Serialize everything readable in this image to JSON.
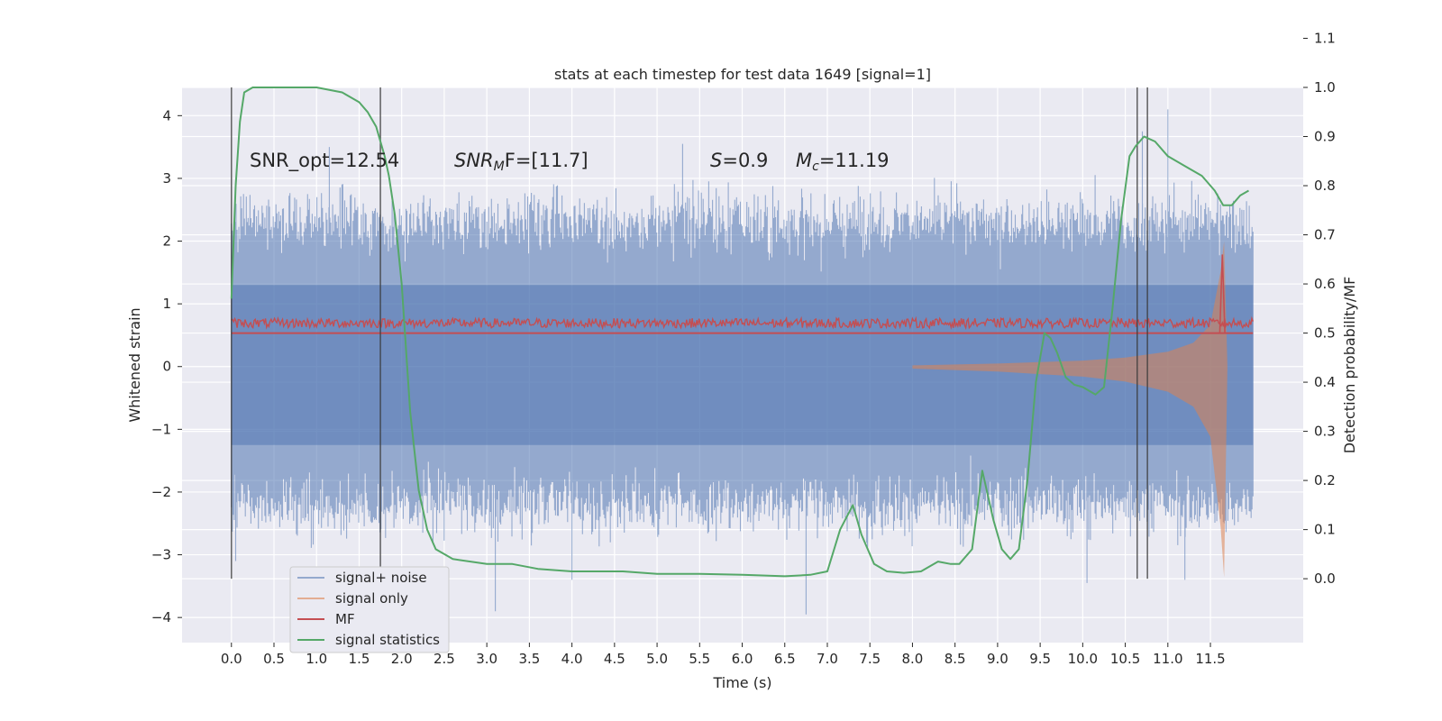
{
  "chart_data": {
    "type": "line",
    "title": "stats at each timestep for test data 1649 [signal=1]",
    "xlabel": "Time (s)",
    "ylabel_left": "Whitened strain",
    "ylabel_right": "Detection probability/MF",
    "xlim": [
      -0.58,
      12.59
    ],
    "ylim_left": [
      -4.4,
      4.45
    ],
    "ylim_right": [
      -0.13,
      1.0
    ],
    "x_ticks": [
      0.0,
      0.5,
      1.0,
      1.5,
      2.0,
      2.5,
      3.0,
      3.5,
      4.0,
      4.5,
      5.0,
      5.5,
      6.0,
      6.5,
      7.0,
      7.5,
      8.0,
      8.5,
      9.0,
      9.5,
      10.0,
      10.5,
      11.0,
      11.5
    ],
    "x_tick_labels": [
      "0.0",
      "0.5",
      "1.0",
      "1.5",
      "2.0",
      "2.5",
      "3.0",
      "3.5",
      "4.0",
      "4.5",
      "5.0",
      "5.5",
      "6.0",
      "6.5",
      "7.0",
      "7.5",
      "8.0",
      "8.5",
      "9.0",
      "9.5",
      "10.0",
      "10.5",
      "11.0",
      "11.5"
    ],
    "y_left_ticks": [
      -4,
      -3,
      -2,
      -1,
      0,
      1,
      2,
      3,
      4
    ],
    "y_left_tick_labels": [
      "−4",
      "−3",
      "−2",
      "−1",
      "0",
      "1",
      "2",
      "3",
      "4"
    ],
    "y_right_ticks": [
      0.0,
      0.1,
      0.2,
      0.3,
      0.4,
      0.5,
      0.6,
      0.7,
      0.8,
      0.9,
      1.0,
      1.1
    ],
    "y_right_tick_labels": [
      "0.0",
      "0.1",
      "0.2",
      "0.3",
      "0.4",
      "0.5",
      "0.6",
      "0.7",
      "0.8",
      "0.9",
      "1.0",
      "1.1"
    ],
    "grid": true,
    "legend_position": "lower-left",
    "annotations": {
      "snr_opt": "SNR_opt=12.54",
      "snr_mf_label": "SNR",
      "snr_mf_sub": "M",
      "snr_mf_rest": "F=[11.7]",
      "s_label": "S",
      "s_value": "=0.9",
      "mc_label": "M",
      "mc_sub": "c",
      "mc_value": "=11.19"
    },
    "vertical_lines_x": [
      0.0,
      1.75,
      10.64,
      10.76
    ],
    "series": [
      {
        "name": "signal+ noise",
        "color": "#4c72b0",
        "axis": "left",
        "x_range": [
          0.0,
          12.0
        ],
        "envelope_approx": [
          -2.2,
          2.3
        ],
        "extreme_peaks": [
          [
            0.05,
            -3.1
          ],
          [
            1.15,
            3.5
          ],
          [
            3.1,
            -3.9
          ],
          [
            4.0,
            -3.4
          ],
          [
            5.3,
            3.55
          ],
          [
            6.75,
            -3.95
          ],
          [
            10.05,
            -3.45
          ],
          [
            10.7,
            3.75
          ],
          [
            11.0,
            4.1
          ],
          [
            11.2,
            -3.4
          ]
        ]
      },
      {
        "name": "signal only",
        "color": "#dd8452",
        "axis": "left",
        "envelope_x": [
          8.0,
          9.0,
          10.0,
          10.5,
          11.0,
          11.3,
          11.5,
          11.62,
          11.66,
          11.7
        ],
        "envelope_amp": [
          0.02,
          0.05,
          0.1,
          0.15,
          0.25,
          0.4,
          0.7,
          1.6,
          2.1,
          0.0
        ]
      },
      {
        "name": "MF",
        "color": "#c44e52",
        "axis": "right",
        "x_range": [
          0.0,
          12.0
        ],
        "baseline": 0.5,
        "band": [
          0.5,
          0.53
        ],
        "spike": [
          11.64,
          0.66
        ]
      },
      {
        "name": "signal statistics",
        "color": "#55a868",
        "axis": "right",
        "x": [
          0.0,
          0.05,
          0.1,
          0.15,
          0.25,
          0.35,
          0.5,
          0.7,
          1.0,
          1.3,
          1.5,
          1.6,
          1.7,
          1.8,
          1.85,
          1.92,
          2.0,
          2.05,
          2.1,
          2.2,
          2.3,
          2.4,
          2.6,
          3.0,
          3.3,
          3.6,
          4.0,
          4.3,
          4.6,
          5.0,
          5.5,
          6.0,
          6.5,
          6.8,
          7.0,
          7.15,
          7.3,
          7.4,
          7.55,
          7.7,
          7.9,
          8.1,
          8.3,
          8.45,
          8.55,
          8.7,
          8.82,
          8.95,
          9.05,
          9.15,
          9.25,
          9.35,
          9.45,
          9.55,
          9.62,
          9.7,
          9.8,
          9.9,
          10.0,
          10.1,
          10.15,
          10.25,
          10.35,
          10.45,
          10.55,
          10.62,
          10.72,
          10.85,
          11.0,
          11.2,
          11.4,
          11.55,
          11.65,
          11.75,
          11.85,
          11.95
        ],
        "y": [
          0.57,
          0.8,
          0.93,
          0.99,
          1.0,
          1.0,
          1.0,
          1.0,
          1.0,
          0.99,
          0.97,
          0.95,
          0.92,
          0.86,
          0.82,
          0.74,
          0.6,
          0.47,
          0.34,
          0.18,
          0.1,
          0.06,
          0.04,
          0.03,
          0.03,
          0.02,
          0.015,
          0.015,
          0.015,
          0.01,
          0.01,
          0.008,
          0.005,
          0.008,
          0.015,
          0.1,
          0.15,
          0.09,
          0.03,
          0.015,
          0.012,
          0.015,
          0.035,
          0.03,
          0.03,
          0.06,
          0.22,
          0.12,
          0.06,
          0.04,
          0.06,
          0.2,
          0.4,
          0.5,
          0.49,
          0.46,
          0.41,
          0.395,
          0.39,
          0.38,
          0.375,
          0.39,
          0.55,
          0.73,
          0.86,
          0.88,
          0.9,
          0.89,
          0.86,
          0.84,
          0.82,
          0.79,
          0.76,
          0.76,
          0.78,
          0.79
        ]
      }
    ]
  }
}
